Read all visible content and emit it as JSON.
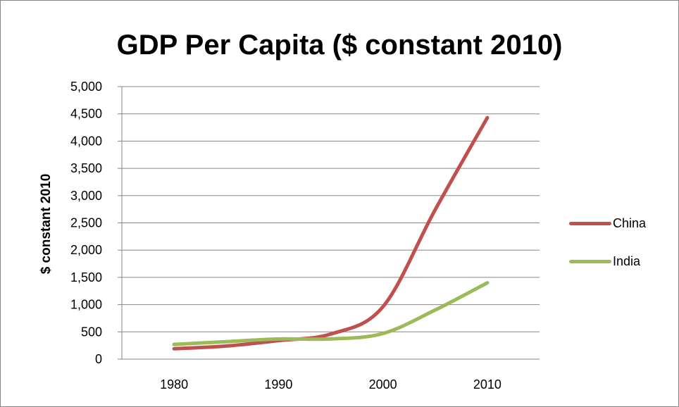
{
  "chart_data": {
    "type": "line",
    "title": "GDP Per Capita ($ constant 2010)",
    "xlabel": "",
    "ylabel": "$ constant 2010",
    "x": [
      1980,
      1985,
      1990,
      1995,
      2000,
      2005,
      2010
    ],
    "x_ticks": [
      "1980",
      "1990",
      "2000",
      "2010"
    ],
    "y_ticks": [
      "0",
      "500",
      "1,000",
      "1,500",
      "2,000",
      "2,500",
      "3,000",
      "3,500",
      "4,000",
      "4,500",
      "5,000"
    ],
    "ylim": [
      0,
      5000
    ],
    "xlim": [
      1975,
      2015
    ],
    "grid": "horizontal",
    "legend_position": "right",
    "smooth": true,
    "series": [
      {
        "name": "China",
        "color": "#c0504d",
        "values": [
          190,
          240,
          340,
          460,
          960,
          2740,
          4430
        ]
      },
      {
        "name": "India",
        "color": "#9bbb59",
        "values": [
          270,
          320,
          370,
          370,
          470,
          900,
          1400
        ]
      }
    ]
  }
}
